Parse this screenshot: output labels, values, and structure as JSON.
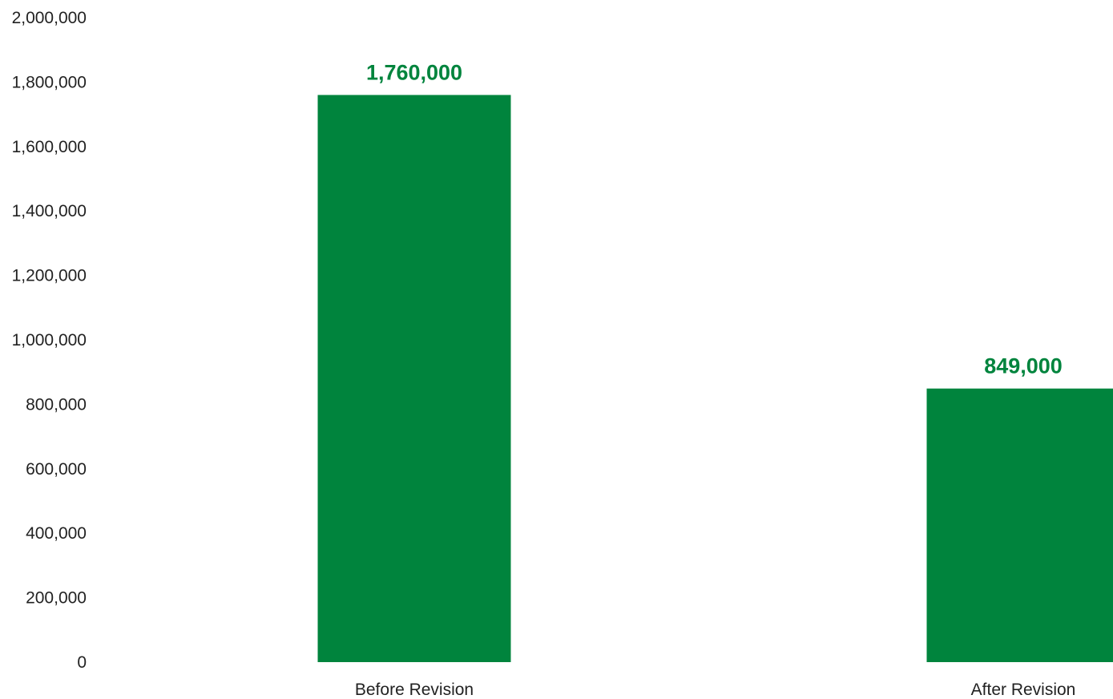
{
  "chart_data": {
    "type": "bar",
    "categories": [
      "Before Revision",
      "After Revision"
    ],
    "values": [
      1760000,
      849000
    ],
    "value_labels": [
      "1,760,000",
      "849,000"
    ],
    "title": "",
    "xlabel": "",
    "ylabel": "",
    "ylim": [
      0,
      2000000
    ],
    "yticks": [
      0,
      200000,
      400000,
      600000,
      800000,
      1000000,
      1200000,
      1400000,
      1600000,
      1800000,
      2000000
    ],
    "ytick_labels": [
      "0",
      "200,000",
      "400,000",
      "600,000",
      "800,000",
      "1,000,000",
      "1,200,000",
      "1,400,000",
      "1,600,000",
      "1,800,000",
      "2,000,000"
    ],
    "grid": false,
    "legend": "none",
    "colors": {
      "bar": "#00843d",
      "value_label": "#00843d",
      "text": "#222222"
    }
  }
}
